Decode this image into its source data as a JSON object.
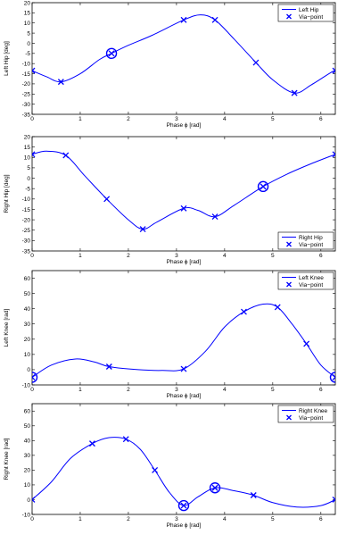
{
  "chart_data": [
    {
      "type": "line",
      "xlabel": "Phase ϕ [rad]",
      "ylabel": "Left Hip [deg]",
      "xlim": [
        0,
        6.3
      ],
      "ylim": [
        -35,
        20
      ],
      "xticks": [
        "0",
        "1",
        "2",
        "3",
        "4",
        "5",
        "6"
      ],
      "yticks": [
        "-35",
        "-30",
        "-25",
        "-20",
        "-15",
        "-10",
        "-5",
        "0",
        "5",
        "10",
        "15",
        "20"
      ],
      "legend": {
        "placement": "top-right",
        "entries": [
          "Left Hip",
          "Via−point"
        ]
      },
      "series": [
        {
          "name": "Left Hip",
          "style": "line",
          "color": "#0000ff",
          "x": [
            0,
            0.3,
            0.6,
            1.0,
            1.4,
            1.65,
            2.0,
            2.5,
            3.15,
            3.5,
            3.8,
            4.2,
            4.65,
            5.0,
            5.45,
            5.8,
            6.2,
            6.3
          ],
          "y": [
            -13.5,
            -16.5,
            -19,
            -15,
            -8,
            -5,
            -1,
            4,
            11.5,
            14,
            11.5,
            2,
            -9.5,
            -18,
            -24.5,
            -20.5,
            -14.5,
            -13.5
          ]
        },
        {
          "name": "Via−point",
          "style": "x",
          "color": "#0000ff",
          "x": [
            0,
            0.6,
            1.65,
            3.15,
            3.8,
            4.65,
            5.45,
            6.3
          ],
          "y": [
            -13.5,
            -19,
            -5,
            11.5,
            11.5,
            -9.5,
            -24.5,
            -13.5
          ]
        }
      ],
      "circled_points": [
        {
          "x": 1.65,
          "y": -5
        }
      ]
    },
    {
      "type": "line",
      "xlabel": "Phase ϕ [rad]",
      "ylabel": "Right Hip [deg]",
      "xlim": [
        0,
        6.3
      ],
      "ylim": [
        -35,
        20
      ],
      "xticks": [
        "0",
        "1",
        "2",
        "3",
        "4",
        "5",
        "6"
      ],
      "yticks": [
        "-35",
        "-30",
        "-25",
        "-20",
        "-15",
        "-10",
        "-5",
        "0",
        "5",
        "10",
        "15",
        "20"
      ],
      "legend": {
        "placement": "bottom-right",
        "entries": [
          "Right Hip",
          "Via−point"
        ]
      },
      "series": [
        {
          "name": "Right Hip",
          "style": "line",
          "color": "#0000ff",
          "x": [
            0,
            0.3,
            0.7,
            1.1,
            1.55,
            2.0,
            2.3,
            2.6,
            3.15,
            3.45,
            3.8,
            4.2,
            4.8,
            5.3,
            5.8,
            6.3
          ],
          "y": [
            11.5,
            13,
            11,
            1,
            -10,
            -20,
            -24.5,
            -21,
            -14.5,
            -15.5,
            -18.5,
            -13,
            -4,
            2,
            7,
            11.5
          ]
        },
        {
          "name": "Via−point",
          "style": "x",
          "color": "#0000ff",
          "x": [
            0,
            0.7,
            1.55,
            2.3,
            3.15,
            3.8,
            4.8,
            6.3
          ],
          "y": [
            11.5,
            11,
            -10,
            -24.5,
            -14.5,
            -18.5,
            -4,
            11.5
          ]
        }
      ],
      "circled_points": [
        {
          "x": 4.8,
          "y": -4
        }
      ]
    },
    {
      "type": "line",
      "xlabel": "Phase ϕ [rad]",
      "ylabel": "Left Knee [rad]",
      "xlim": [
        0,
        6.3
      ],
      "ylim": [
        -10,
        65
      ],
      "xticks": [
        "0",
        "1",
        "2",
        "3",
        "4",
        "5",
        "6"
      ],
      "yticks": [
        "-10",
        "0",
        "10",
        "20",
        "30",
        "40",
        "50",
        "60"
      ],
      "legend": {
        "placement": "top-right",
        "entries": [
          "Left Knee",
          "Via−point"
        ]
      },
      "series": [
        {
          "name": "Left Knee",
          "style": "line",
          "color": "#0000ff",
          "x": [
            0,
            0.4,
            0.9,
            1.3,
            1.6,
            2.2,
            2.7,
            3.15,
            3.6,
            4.0,
            4.4,
            4.8,
            5.1,
            5.4,
            5.7,
            6.0,
            6.3
          ],
          "y": [
            -5,
            3,
            7,
            5,
            2,
            0,
            -0.5,
            0.5,
            12,
            28,
            38,
            43,
            41,
            30,
            17,
            3,
            -5
          ]
        },
        {
          "name": "Via−point",
          "style": "x",
          "color": "#0000ff",
          "x": [
            0,
            1.6,
            3.15,
            4.4,
            5.1,
            5.7,
            6.3
          ],
          "y": [
            -5,
            2,
            0.5,
            38,
            41,
            17,
            -5
          ]
        }
      ],
      "circled_points": [
        {
          "x": 0,
          "y": -5
        },
        {
          "x": 6.3,
          "y": -5
        }
      ]
    },
    {
      "type": "line",
      "xlabel": "Phase ϕ [rad]",
      "ylabel": "Right Knee [rad]",
      "xlim": [
        0,
        6.3
      ],
      "ylim": [
        -10,
        65
      ],
      "xticks": [
        "0",
        "1",
        "2",
        "3",
        "4",
        "5",
        "6"
      ],
      "yticks": [
        "-10",
        "0",
        "10",
        "20",
        "30",
        "40",
        "50",
        "60"
      ],
      "legend": {
        "placement": "top-right",
        "entries": [
          "Right Knee",
          "Via−point"
        ]
      },
      "series": [
        {
          "name": "Right Knee",
          "style": "line",
          "color": "#0000ff",
          "x": [
            0,
            0.4,
            0.8,
            1.25,
            1.6,
            1.95,
            2.25,
            2.55,
            2.85,
            3.15,
            3.45,
            3.8,
            4.2,
            4.6,
            5.0,
            5.5,
            6.0,
            6.3
          ],
          "y": [
            0,
            12,
            28,
            38,
            42,
            41,
            34,
            20,
            5,
            -4,
            2,
            8,
            6,
            3,
            -2,
            -5,
            -4,
            0
          ]
        },
        {
          "name": "Via−point",
          "style": "x",
          "color": "#0000ff",
          "x": [
            0,
            1.25,
            1.95,
            2.55,
            3.15,
            3.8,
            4.6,
            6.3
          ],
          "y": [
            0,
            38,
            41,
            20,
            -4,
            8,
            3,
            0
          ]
        }
      ],
      "circled_points": [
        {
          "x": 3.15,
          "y": -4
        },
        {
          "x": 3.8,
          "y": 8
        }
      ]
    }
  ]
}
